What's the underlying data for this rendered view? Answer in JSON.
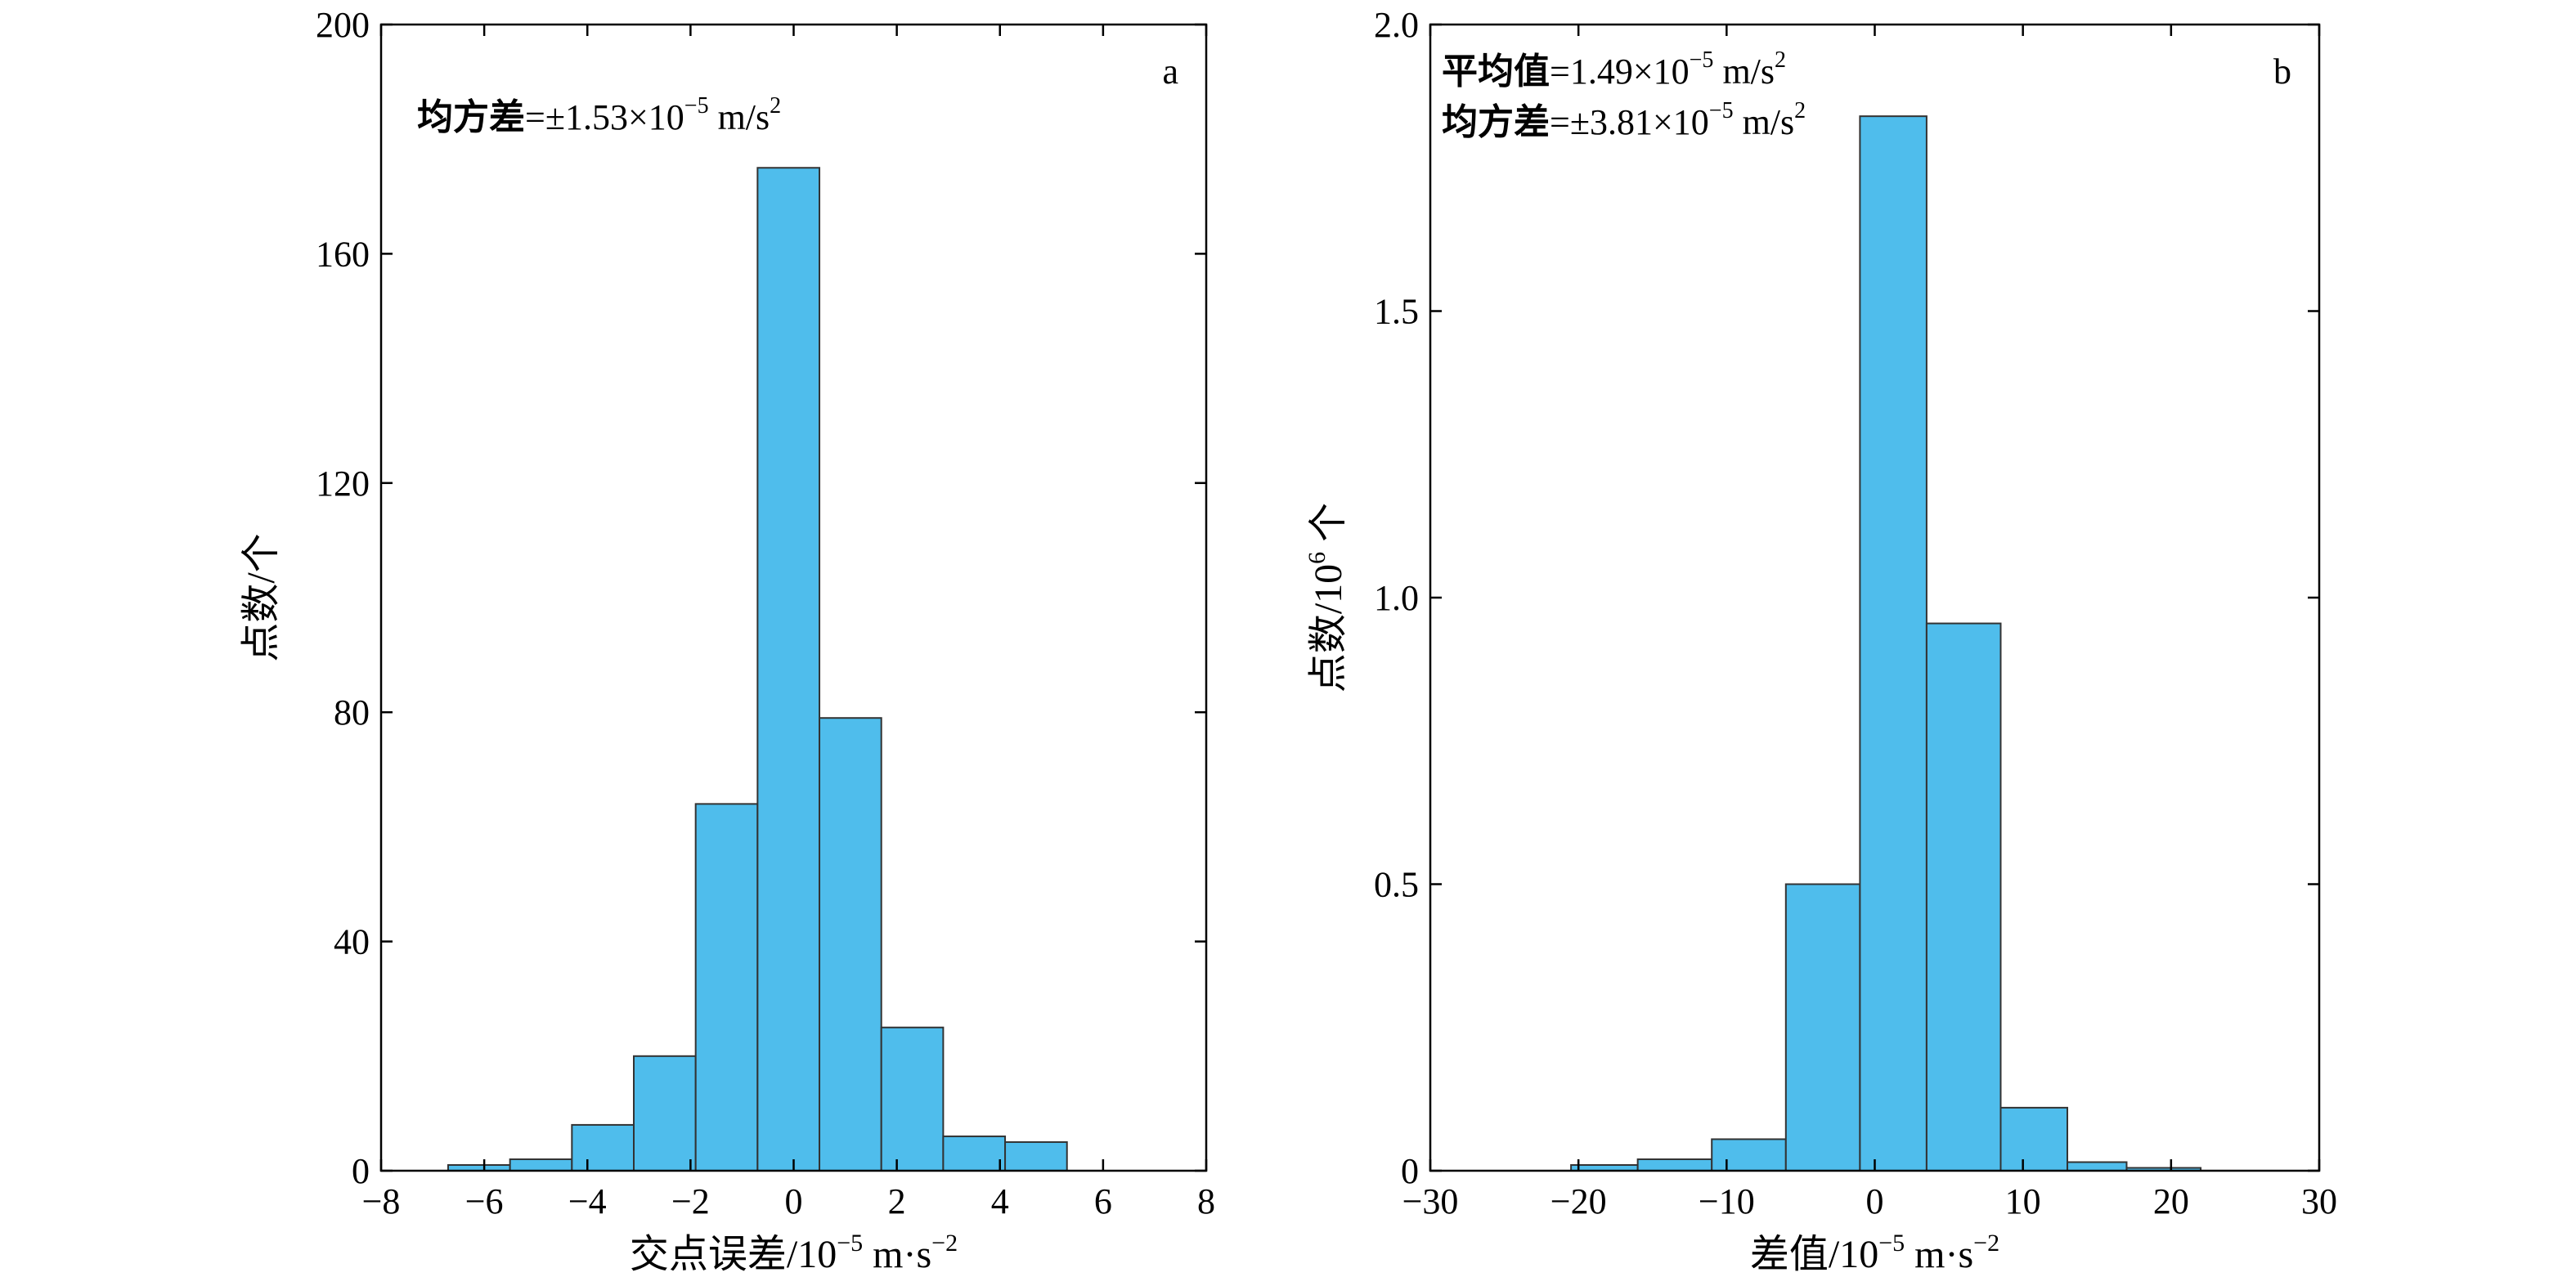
{
  "chart_data": [
    {
      "type": "bar",
      "panel_label": "a",
      "xlabel": {
        "main": "交点误差/10",
        "exp": "−5",
        "unit": " m·s",
        "unit_exp": "−2"
      },
      "ylabel": "点数/个",
      "xlim": [
        -8,
        8
      ],
      "ylim": [
        0,
        200
      ],
      "xticks": [
        -8,
        -6,
        -4,
        -2,
        0,
        2,
        4,
        6,
        8
      ],
      "xtick_labels": [
        "−8",
        "−6",
        "−4",
        "−2",
        "0",
        "2",
        "4",
        "6",
        "8"
      ],
      "yticks": [
        0,
        40,
        80,
        120,
        160,
        200
      ],
      "ytick_labels": [
        "0",
        "40",
        "80",
        "120",
        "160",
        "200"
      ],
      "grid": false,
      "bar_color": "#4FBDEC",
      "edge_color": "#333333",
      "bins": [
        {
          "x0": -6.7,
          "x1": -5.5,
          "count": 1
        },
        {
          "x0": -5.5,
          "x1": -4.3,
          "count": 2
        },
        {
          "x0": -4.3,
          "x1": -3.1,
          "count": 8
        },
        {
          "x0": -3.1,
          "x1": -1.9,
          "count": 20
        },
        {
          "x0": -1.9,
          "x1": -0.7,
          "count": 64
        },
        {
          "x0": -0.7,
          "x1": 0.5,
          "count": 175
        },
        {
          "x0": 0.5,
          "x1": 1.7,
          "count": 79
        },
        {
          "x0": 1.7,
          "x1": 2.9,
          "count": 25
        },
        {
          "x0": 2.9,
          "x1": 4.1,
          "count": 6
        },
        {
          "x0": 4.1,
          "x1": 5.3,
          "count": 5
        }
      ],
      "annotations": [
        {
          "bold": "均方差",
          "text": "=±1.53×10",
          "exp": "−5",
          "unit": " m/s",
          "unit_exp": "2"
        }
      ]
    },
    {
      "type": "bar",
      "panel_label": "b",
      "xlabel": {
        "main": "差值/10",
        "exp": "−5",
        "unit": " m·s",
        "unit_exp": "−2"
      },
      "ylabel": {
        "main": "点数/10",
        "exp": "6",
        "unit": " 个"
      },
      "xlim": [
        -30,
        30
      ],
      "ylim": [
        0,
        2.0
      ],
      "xticks": [
        -30,
        -20,
        -10,
        0,
        10,
        20,
        30
      ],
      "xtick_labels": [
        "−30",
        "−20",
        "−10",
        "0",
        "10",
        "20",
        "30"
      ],
      "yticks": [
        0,
        0.5,
        1.0,
        1.5,
        2.0
      ],
      "ytick_labels": [
        "0",
        "0.5",
        "1.0",
        "1.5",
        "2.0"
      ],
      "grid": false,
      "bar_color": "#4FBDEC",
      "edge_color": "#333333",
      "bins": [
        {
          "x0": -20.5,
          "x1": -16.0,
          "count": 0.01
        },
        {
          "x0": -16.0,
          "x1": -11.0,
          "count": 0.02
        },
        {
          "x0": -11.0,
          "x1": -6.0,
          "count": 0.055
        },
        {
          "x0": -6.0,
          "x1": -1.0,
          "count": 0.5
        },
        {
          "x0": -1.0,
          "x1": 3.5,
          "count": 1.84
        },
        {
          "x0": 3.5,
          "x1": 8.5,
          "count": 0.955
        },
        {
          "x0": 8.5,
          "x1": 13.0,
          "count": 0.11
        },
        {
          "x0": 13.0,
          "x1": 17.0,
          "count": 0.015
        },
        {
          "x0": 17.0,
          "x1": 22.0,
          "count": 0.005
        }
      ],
      "annotations": [
        {
          "bold": "平均值",
          "text": "=1.49×10",
          "exp": "−5",
          "unit": " m/s",
          "unit_exp": "2"
        },
        {
          "bold": "均方差",
          "text": "=±3.81×10",
          "exp": "−5",
          "unit": " m/s",
          "unit_exp": "2"
        }
      ]
    }
  ]
}
